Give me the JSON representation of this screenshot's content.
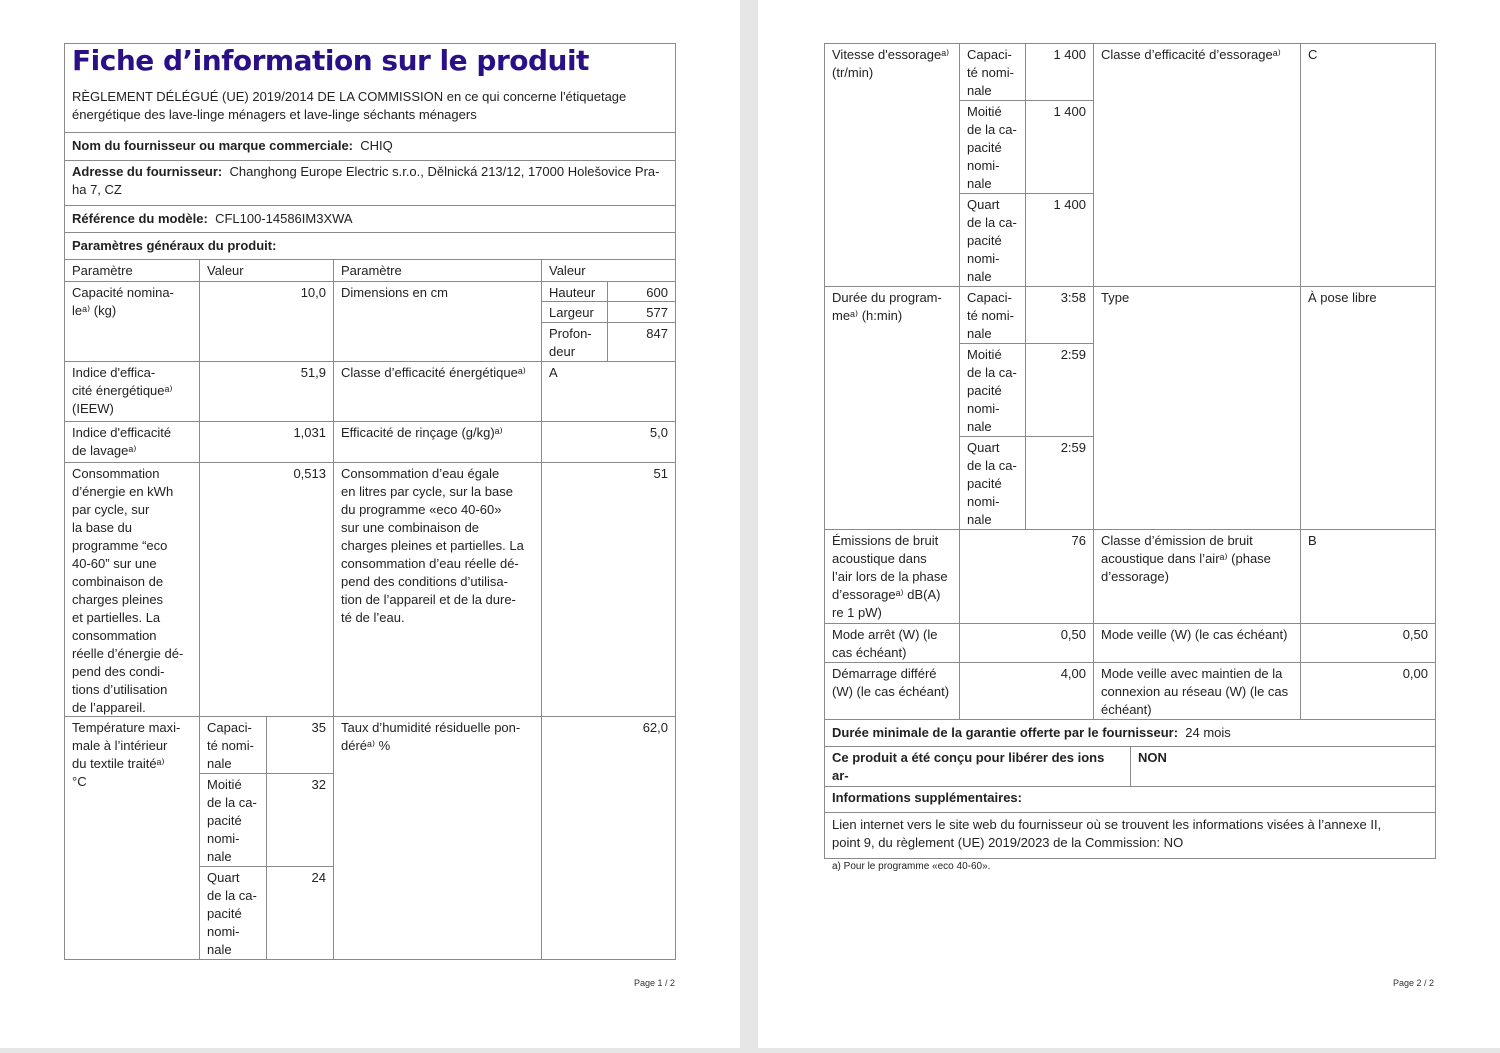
{
  "page1": {
    "title": "Fiche d’information sur le produit",
    "subtitle": "RÈGLEMENT DÉLÉGUÉ (UE) 2019/2014 DE LA COMMISSION en ce qui concerne l'étiquetage\nénergétique des lave-linge ménagers et lave-linge séchants ménagers",
    "supplier_label": "Nom du fournisseur ou marque commerciale:",
    "supplier_value": "CHIQ",
    "address_label": "Adresse du fournisseur:",
    "address_value": "Changhong Europe Electric s.r.o., Dělnická 213/12, 17000 Holešovice Pra-\nha 7, CZ",
    "model_label": "Référence du modèle:",
    "model_value": "CFL100-14586IM3XWA",
    "general_params": "Paramètres généraux du produit:",
    "headers": [
      "Paramètre",
      "Valeur",
      "Paramètre",
      "Valeur"
    ],
    "rows": [
      {
        "p1": "Capacité  nomina-\nleᵃ⁾  (kg)",
        "v1": "10,0",
        "p2": "Dimensions en cm",
        "dims": [
          {
            "label": "Hauteur",
            "value": "600"
          },
          {
            "label": "Largeur",
            "value": "577"
          },
          {
            "label": "Profon-\ndeur",
            "value": "847"
          }
        ]
      },
      {
        "p1": "Indice    d'effica-\ncité  énergétiqueᵃ⁾\n(IEEW)",
        "v1": "51,9",
        "p2": "Classe d’efficacité énergétiqueᵃ⁾",
        "v2": "A"
      },
      {
        "p1": "Indice   d'efficacité\nde lavageᵃ⁾",
        "v1": "1,031",
        "p2": "Efficacité de rinçage (g/kg)ᵃ⁾",
        "v2": "5,0"
      },
      {
        "p1": "Consommation\nd’énergie  en  kWh\npar      cycle,      sur\nla       base        du\nprogramme      “eco\n40-60”    sur    une\ncombinaison      de\ncharges      pleines\net    partielles.    La\nconsommation\nréelle d’énergie dé-\npend   des   condi-\ntions    d’utilisation\nde l’appareil.",
        "v1": "0,513",
        "p2": "Consommation d’eau égale\nen litres par cycle, sur la base\ndu programme «eco 40-60»\nsur une combinaison de\ncharges pleines et partielles. La\nconsommation d’eau réelle dé-\npend des conditions d’utilisa-\ntion de l’appareil et de la dure-\nté de l’eau.",
        "v2": "51"
      },
      {
        "p1": "Température maxi-\nmale  à  l’intérieur\ndu  textile  traitéᵃ⁾\n°C",
        "sub": [
          {
            "label": "Capaci-\nté nomi-\nnale",
            "value": "35"
          },
          {
            "label": "Moitié\nde la ca-\npacité\nnomi-\nnale",
            "value": "32"
          },
          {
            "label": "Quart\nde la ca-\npacité\nnomi-\nnale",
            "value": "24"
          }
        ],
        "p2": "Taux d’humidité résiduelle pon-\ndéréᵃ⁾  %",
        "v2": "62,0"
      }
    ],
    "page_number": "Page 1 / 2"
  },
  "page2": {
    "rows": [
      {
        "p1": "Vitesse d'essorageᵃ⁾\n(tr/min)",
        "sub": [
          {
            "label": "Capaci-\nté nomi-\nnale",
            "value": "1 400"
          },
          {
            "label": "Moitié\nde la ca-\npacité\nnomi-\nnale",
            "value": "1 400"
          },
          {
            "label": "Quart\nde la ca-\npacité\nnomi-\nnale",
            "value": "1 400"
          }
        ],
        "p2": "Classe d’efficacité d’essorageᵃ⁾",
        "v2": "C"
      },
      {
        "p1": "Durée du program-\nmeᵃ⁾  (h:min)",
        "sub": [
          {
            "label": "Capaci-\nté nomi-\nnale",
            "value": "3:58"
          },
          {
            "label": "Moitié\nde la ca-\npacité\nnomi-\nnale",
            "value": "2:59"
          },
          {
            "label": "Quart\nde la ca-\npacité\nnomi-\nnale",
            "value": "2:59"
          }
        ],
        "p2": "Type",
        "v2": "À pose libre"
      },
      {
        "p1": "Émissions  de  bruit\nacoustique       dans\nl’air lors de la phase\nd’essorageᵃ⁾   dB(A)\nre 1 pW)",
        "v1": "76",
        "p2": "Classe    d’émission    de    bruit\nacoustique dans l’airᵃ⁾    (phase\nd’essorage)",
        "v2": "B"
      },
      {
        "p1": "Mode arrêt (W) (le\ncas échéant)",
        "v1": "0,50",
        "p2": "Mode veille (W) (le cas échéant)",
        "v2": "0,50"
      },
      {
        "p1": "Démarrage  différé\n(W) (le cas échéant)",
        "v1": "4,00",
        "p2": "Mode veille avec maintien de la\nconnexion au réseau (W) (le cas\néchéant)",
        "v2": "0,00"
      }
    ],
    "warranty_label": "Durée minimale de la garantie offerte par le fournisseur:",
    "warranty_value": "24 mois",
    "silver_ions_label": "Ce produit a été conçu pour libérer des ions ar-\ngent au cours du cycle de lavage",
    "silver_ions_value": "NON",
    "additional_info": "Informations supplémentaires:",
    "web_link": "Lien internet vers le site web du fournisseur où se trouvent les informations visées à l’annexe II,\npoint 9, du règlement (UE) 2019/2023 de la Commission:  NO",
    "footnote": "a) Pour le programme «eco 40-60».",
    "page_number": "Page 2 / 2"
  },
  "colors": {
    "title": "#2b0f86",
    "border": "#8a8a8a",
    "background": "#e6e6e6"
  }
}
